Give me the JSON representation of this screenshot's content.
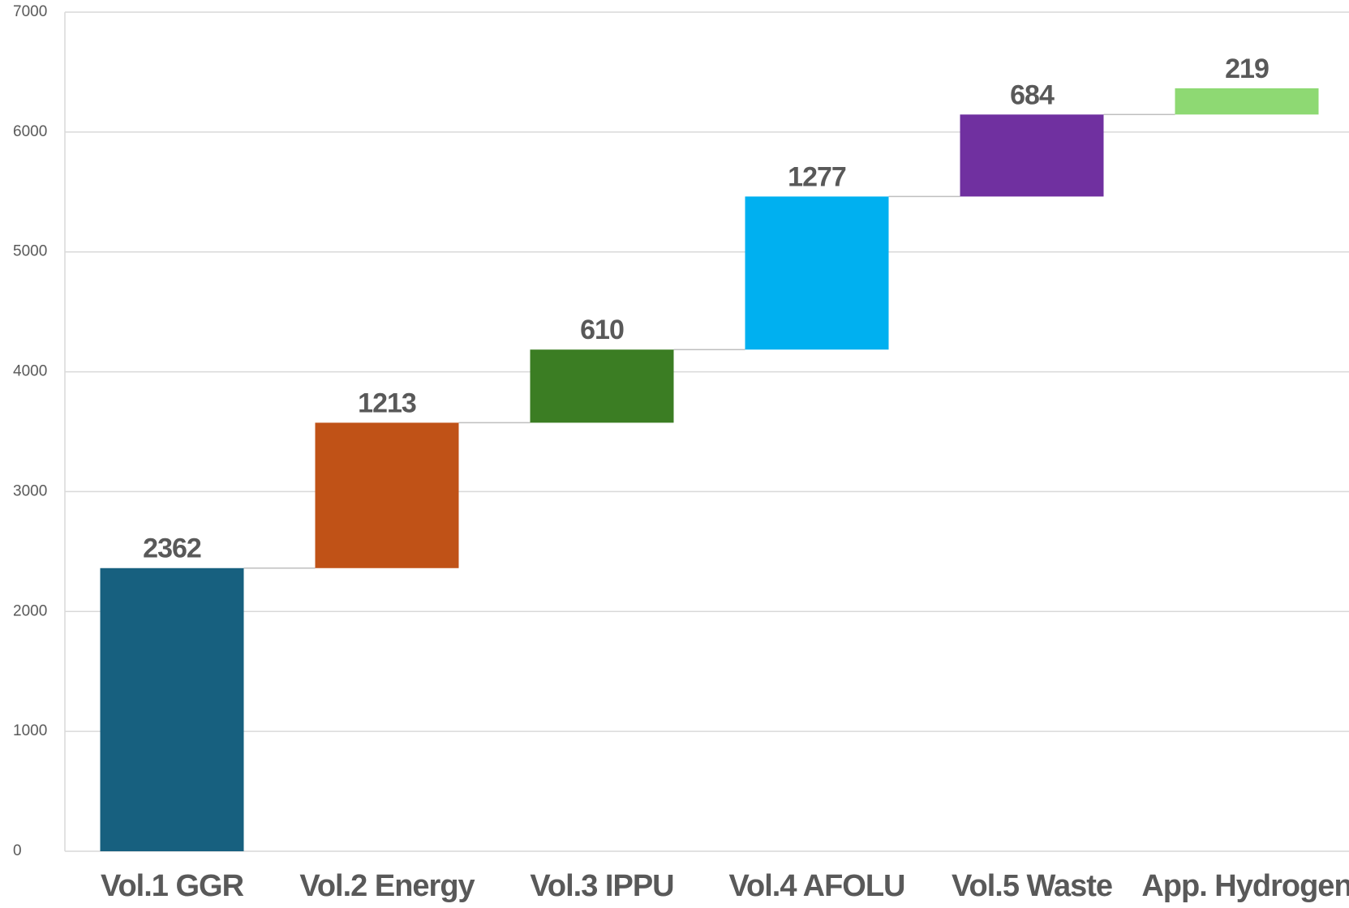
{
  "chart_data": {
    "type": "waterfall",
    "categories": [
      "Vol.1 GGR",
      "Vol.2 Energy",
      "Vol.3 IPPU",
      "Vol.4 AFOLU",
      "Vol.5 Waste",
      "App. Hydrogen"
    ],
    "values": [
      2362,
      1213,
      610,
      1277,
      684,
      219
    ],
    "colors": [
      "#17607f",
      "#c05217",
      "#3b7d23",
      "#00b0f0",
      "#7030a0",
      "#8ed973"
    ],
    "ylim": [
      0,
      7000
    ],
    "yticks": [
      0,
      1000,
      2000,
      3000,
      4000,
      5000,
      6000,
      7000
    ],
    "grid": true
  }
}
